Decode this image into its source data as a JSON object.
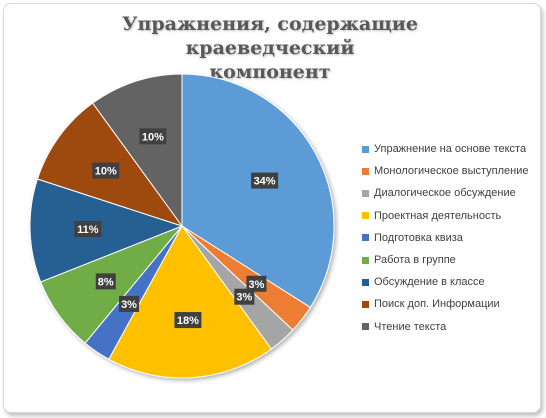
{
  "chart_data": {
    "type": "pie",
    "title": "Упражнения, содержащие краеведческий компонент",
    "title_lines": [
      "Упражнения, содержащие краеведческий",
      "компонент"
    ],
    "legend_position": "right",
    "slices": [
      {
        "label": "Упражнение на основе текста",
        "value": 34,
        "display": "34%",
        "color": "#5B9BD5"
      },
      {
        "label": "Монологическое выступление",
        "value": 3,
        "display": "3%",
        "color": "#ED7D31"
      },
      {
        "label": "Диалогическое обсуждение",
        "value": 3,
        "display": "3%",
        "color": "#A5A5A5"
      },
      {
        "label": "Проектная деятельность",
        "value": 18,
        "display": "18%",
        "color": "#FFC000"
      },
      {
        "label": "Подготовка квиза",
        "value": 3,
        "display": "3%",
        "color": "#4472C4"
      },
      {
        "label": "Работа в группе",
        "value": 8,
        "display": "8%",
        "color": "#70AD47"
      },
      {
        "label": "Обсуждение в классе",
        "value": 11,
        "display": "11%",
        "color": "#255E91"
      },
      {
        "label": "Поиск доп. Информации",
        "value": 10,
        "display": "10%",
        "color": "#9E480E"
      },
      {
        "label": "Чтение текста",
        "value": 10,
        "display": "10%",
        "color": "#636363"
      }
    ]
  }
}
